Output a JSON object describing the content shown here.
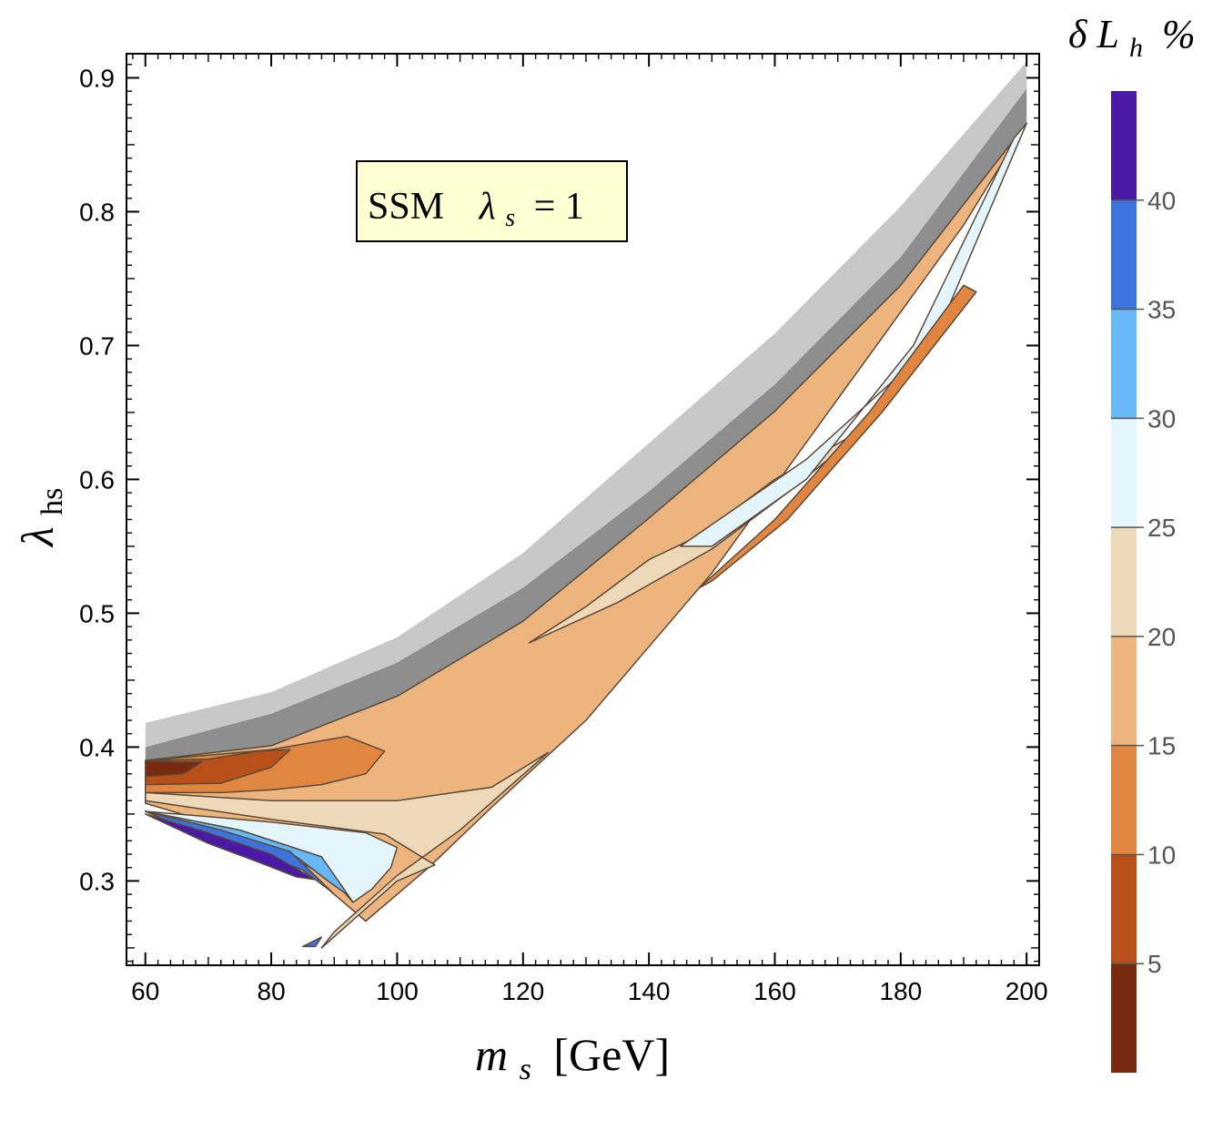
{
  "chart_data": {
    "type": "contour",
    "annotation": {
      "model": "SSM",
      "parameter_symbol": "λ",
      "parameter_subscript": "s",
      "parameter_value": "= 1"
    },
    "xlabel": {
      "symbol": "m",
      "subscript": "s",
      "unit": "[GeV]"
    },
    "ylabel": {
      "symbol": "λ",
      "subscript": "hs"
    },
    "colorbar_title": {
      "symbol": "δ L",
      "subscript": "h",
      "unit": "%"
    },
    "xlim": [
      57,
      202
    ],
    "ylim": [
      0.237,
      0.918
    ],
    "xticks": [
      60,
      80,
      100,
      120,
      140,
      160,
      180,
      200
    ],
    "xtick_labels": [
      "60",
      "80",
      "100",
      "120",
      "140",
      "160",
      "180",
      "200"
    ],
    "yticks": [
      0.3,
      0.4,
      0.5,
      0.6,
      0.7,
      0.8,
      0.9
    ],
    "ytick_labels": [
      "0.3",
      "0.4",
      "0.5",
      "0.6",
      "0.7",
      "0.8",
      "0.9"
    ],
    "colorbar": {
      "range": [
        0,
        45
      ],
      "ticks": [
        5,
        10,
        15,
        20,
        25,
        30,
        35,
        40
      ],
      "tick_labels": [
        "5",
        "10",
        "15",
        "20",
        "25",
        "30",
        "35",
        "40"
      ],
      "levels": [
        {
          "from": 0,
          "to": 5,
          "color": "#782a10"
        },
        {
          "from": 5,
          "to": 10,
          "color": "#b9501a"
        },
        {
          "from": 10,
          "to": 15,
          "color": "#e08640"
        },
        {
          "from": 15,
          "to": 20,
          "color": "#edb47e"
        },
        {
          "from": 20,
          "to": 25,
          "color": "#edd8b8"
        },
        {
          "from": 25,
          "to": 30,
          "color": "#e4f5fc"
        },
        {
          "from": 30,
          "to": 35,
          "color": "#66b8f6"
        },
        {
          "from": 35,
          "to": 40,
          "color": "#3d73de"
        },
        {
          "from": 40,
          "to": 45,
          "color": "#4a1aa6"
        }
      ]
    },
    "gray_bands": {
      "light_color": "#c8c8c8",
      "dark_color": "#8e8e8e",
      "x": [
        60,
        80,
        100,
        120,
        140,
        160,
        180,
        200
      ],
      "light_top": [
        0.418,
        0.441,
        0.482,
        0.545,
        0.627,
        0.709,
        0.804,
        0.912
      ],
      "light_bottom": [
        0.4,
        0.425,
        0.463,
        0.519,
        0.591,
        0.671,
        0.766,
        0.892
      ],
      "dark_bottom": [
        0.39,
        0.401,
        0.438,
        0.494,
        0.571,
        0.651,
        0.745,
        0.866
      ]
    },
    "regions": [
      {
        "level": "15-20",
        "x": [
          60,
          80,
          100,
          120,
          140,
          160,
          180,
          200,
          190,
          170,
          150,
          130,
          115,
          105,
          95,
          80,
          60
        ],
        "y": [
          0.39,
          0.401,
          0.438,
          0.494,
          0.571,
          0.651,
          0.745,
          0.866,
          0.79,
          0.66,
          0.53,
          0.42,
          0.355,
          0.31,
          0.27,
          0.33,
          0.358
        ]
      },
      {
        "level": "20-25",
        "x": [
          60,
          80,
          100,
          115,
          124,
          110,
          100,
          95,
          90,
          88,
          100,
          106,
          98,
          80,
          60
        ],
        "y": [
          0.366,
          0.36,
          0.36,
          0.37,
          0.396,
          0.338,
          0.304,
          0.283,
          0.262,
          0.25,
          0.3,
          0.312,
          0.335,
          0.346,
          0.36
        ]
      },
      {
        "level": "20-25",
        "x": [
          121,
          135,
          150,
          162,
          175,
          160,
          148,
          140,
          130,
          121
        ],
        "y": [
          0.478,
          0.508,
          0.548,
          0.59,
          0.64,
          0.6,
          0.558,
          0.54,
          0.505,
          0.478
        ]
      },
      {
        "level": "25-30",
        "x": [
          60,
          80,
          95,
          100,
          99,
          96,
          93,
          90,
          82,
          70,
          60
        ],
        "y": [
          0.352,
          0.344,
          0.336,
          0.325,
          0.31,
          0.294,
          0.284,
          0.3,
          0.321,
          0.338,
          0.352
        ]
      },
      {
        "level": "25-30",
        "x": [
          145,
          165,
          185,
          200,
          198,
          182,
          165,
          150,
          145
        ],
        "y": [
          0.55,
          0.615,
          0.7,
          0.866,
          0.855,
          0.7,
          0.6,
          0.55,
          0.55
        ]
      },
      {
        "level": "30-35",
        "x": [
          60,
          75,
          88,
          93,
          92,
          89,
          84,
          75,
          60
        ],
        "y": [
          0.352,
          0.338,
          0.318,
          0.284,
          0.29,
          0.3,
          0.318,
          0.332,
          0.352
        ]
      },
      {
        "level": "35-40",
        "x": [
          60,
          72,
          83,
          90,
          89,
          85,
          78,
          68,
          60
        ],
        "y": [
          0.352,
          0.338,
          0.322,
          0.29,
          0.294,
          0.308,
          0.321,
          0.336,
          0.352
        ]
      },
      {
        "level": "40-45",
        "x": [
          60,
          70,
          80,
          87,
          84,
          78,
          70,
          60
        ],
        "y": [
          0.35,
          0.336,
          0.32,
          0.301,
          0.303,
          0.314,
          0.328,
          0.35
        ]
      },
      {
        "level": "35-40",
        "x": [
          85,
          88,
          87,
          85
        ],
        "y": [
          0.251,
          0.258,
          0.251,
          0.251
        ]
      },
      {
        "level": "10-15",
        "x": [
          60,
          80,
          92,
          98,
          95,
          88,
          80,
          72,
          60
        ],
        "y": [
          0.39,
          0.398,
          0.408,
          0.397,
          0.38,
          0.372,
          0.368,
          0.366,
          0.366
        ]
      },
      {
        "level": "10-15",
        "x": [
          148,
          160,
          175,
          190,
          192,
          177,
          162,
          150,
          148
        ],
        "y": [
          0.519,
          0.57,
          0.65,
          0.745,
          0.74,
          0.65,
          0.57,
          0.524,
          0.519
        ]
      },
      {
        "level": "5-10",
        "x": [
          60,
          70,
          78,
          83,
          80,
          72,
          60
        ],
        "y": [
          0.39,
          0.391,
          0.397,
          0.398,
          0.385,
          0.373,
          0.372
        ]
      },
      {
        "level": "0-5",
        "x": [
          60,
          65,
          69,
          66,
          60
        ],
        "y": [
          0.39,
          0.389,
          0.389,
          0.38,
          0.378
        ]
      }
    ]
  }
}
